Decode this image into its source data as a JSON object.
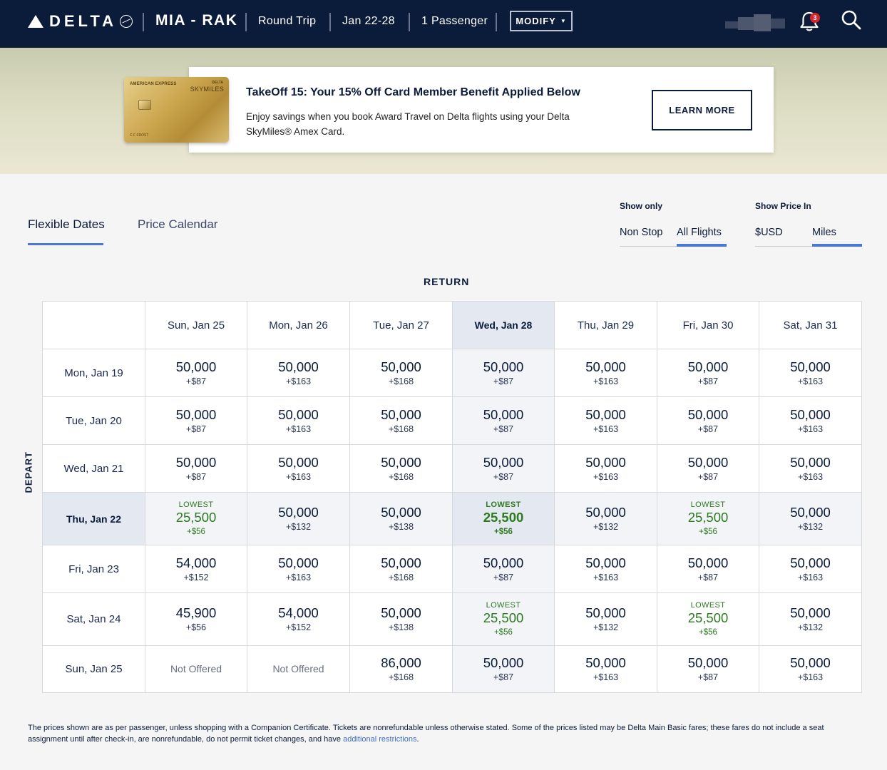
{
  "header": {
    "brand": "DELTA",
    "route": "MIA - RAK",
    "trip_type": "Round Trip",
    "dates": "Jan 22-28",
    "passengers": "1 Passenger",
    "modify_label": "MODIFY",
    "notification_count": "3"
  },
  "promo": {
    "card_issuer": "AMERICAN EXPRESS",
    "card_brand": "DELTA",
    "card_program": "SKYMILES",
    "card_holder": "C F FROST",
    "title": "TakeOff 15: Your 15% Off Card Member Benefit Applied Below",
    "text": "Enjoy savings when you book Award Travel on Delta flights using your Delta SkyMiles® Amex Card.",
    "button": "LEARN MORE"
  },
  "tabs": {
    "flexible": "Flexible Dates",
    "calendar": "Price Calendar"
  },
  "filters": {
    "show_only_label": "Show only",
    "non_stop": "Non Stop",
    "all_flights": "All Flights",
    "show_price_label": "Show Price In",
    "usd": "$USD",
    "miles": "Miles"
  },
  "grid": {
    "return_label": "RETURN",
    "depart_label": "DEPART",
    "lowest_label": "LOWEST",
    "columns": [
      "Sun, Jan 25",
      "Mon, Jan 26",
      "Tue, Jan 27",
      "Wed, Jan 28",
      "Thu, Jan 29",
      "Fri, Jan 30",
      "Sat, Jan 31"
    ],
    "rows": [
      {
        "label": "Mon, Jan 19",
        "cells": [
          {
            "miles": "50,000",
            "fee": "+$87"
          },
          {
            "miles": "50,000",
            "fee": "+$163"
          },
          {
            "miles": "50,000",
            "fee": "+$168"
          },
          {
            "miles": "50,000",
            "fee": "+$87"
          },
          {
            "miles": "50,000",
            "fee": "+$163"
          },
          {
            "miles": "50,000",
            "fee": "+$87"
          },
          {
            "miles": "50,000",
            "fee": "+$163"
          }
        ]
      },
      {
        "label": "Tue, Jan 20",
        "cells": [
          {
            "miles": "50,000",
            "fee": "+$87"
          },
          {
            "miles": "50,000",
            "fee": "+$163"
          },
          {
            "miles": "50,000",
            "fee": "+$168"
          },
          {
            "miles": "50,000",
            "fee": "+$87"
          },
          {
            "miles": "50,000",
            "fee": "+$163"
          },
          {
            "miles": "50,000",
            "fee": "+$87"
          },
          {
            "miles": "50,000",
            "fee": "+$163"
          }
        ]
      },
      {
        "label": "Wed, Jan 21",
        "cells": [
          {
            "miles": "50,000",
            "fee": "+$87"
          },
          {
            "miles": "50,000",
            "fee": "+$163"
          },
          {
            "miles": "50,000",
            "fee": "+$168"
          },
          {
            "miles": "50,000",
            "fee": "+$87"
          },
          {
            "miles": "50,000",
            "fee": "+$163"
          },
          {
            "miles": "50,000",
            "fee": "+$87"
          },
          {
            "miles": "50,000",
            "fee": "+$163"
          }
        ]
      },
      {
        "label": "Thu, Jan 22",
        "cells": [
          {
            "miles": "25,500",
            "fee": "+$56",
            "lowest": true
          },
          {
            "miles": "50,000",
            "fee": "+$132"
          },
          {
            "miles": "50,000",
            "fee": "+$138"
          },
          {
            "miles": "25,500",
            "fee": "+$56",
            "lowest": true
          },
          {
            "miles": "50,000",
            "fee": "+$132"
          },
          {
            "miles": "25,500",
            "fee": "+$56",
            "lowest": true
          },
          {
            "miles": "50,000",
            "fee": "+$132"
          }
        ]
      },
      {
        "label": "Fri, Jan 23",
        "cells": [
          {
            "miles": "54,000",
            "fee": "+$152"
          },
          {
            "miles": "50,000",
            "fee": "+$163"
          },
          {
            "miles": "50,000",
            "fee": "+$168"
          },
          {
            "miles": "50,000",
            "fee": "+$87"
          },
          {
            "miles": "50,000",
            "fee": "+$163"
          },
          {
            "miles": "50,000",
            "fee": "+$87"
          },
          {
            "miles": "50,000",
            "fee": "+$163"
          }
        ]
      },
      {
        "label": "Sat, Jan 24",
        "cells": [
          {
            "miles": "45,900",
            "fee": "+$56"
          },
          {
            "miles": "54,000",
            "fee": "+$152"
          },
          {
            "miles": "50,000",
            "fee": "+$138"
          },
          {
            "miles": "25,500",
            "fee": "+$56",
            "lowest": true
          },
          {
            "miles": "50,000",
            "fee": "+$132"
          },
          {
            "miles": "25,500",
            "fee": "+$56",
            "lowest": true
          },
          {
            "miles": "50,000",
            "fee": "+$132"
          }
        ]
      },
      {
        "label": "Sun, Jan 25",
        "cells": [
          {
            "na": "Not Offered"
          },
          {
            "na": "Not Offered"
          },
          {
            "miles": "86,000",
            "fee": "+$168"
          },
          {
            "miles": "50,000",
            "fee": "+$87"
          },
          {
            "miles": "50,000",
            "fee": "+$163"
          },
          {
            "miles": "50,000",
            "fee": "+$87"
          },
          {
            "miles": "50,000",
            "fee": "+$163"
          }
        ]
      }
    ]
  },
  "footnote": {
    "text": "The prices shown are as per passenger, unless shopping with a Companion Certificate. Tickets are nonrefundable unless otherwise stated. Some of the prices listed may be Delta Main Basic fares; these fares do not include a seat assignment until after check-in, are nonrefundable, do not permit ticket changes, and have",
    "link": "additional restrictions",
    "end": "."
  },
  "colors": {
    "navy": "#0b1b3a",
    "accent_blue": "#4a79d4",
    "lowest_green": "#2d7a1f",
    "selected_bg": "#e3e8f1",
    "badge_red": "#d9252a"
  }
}
